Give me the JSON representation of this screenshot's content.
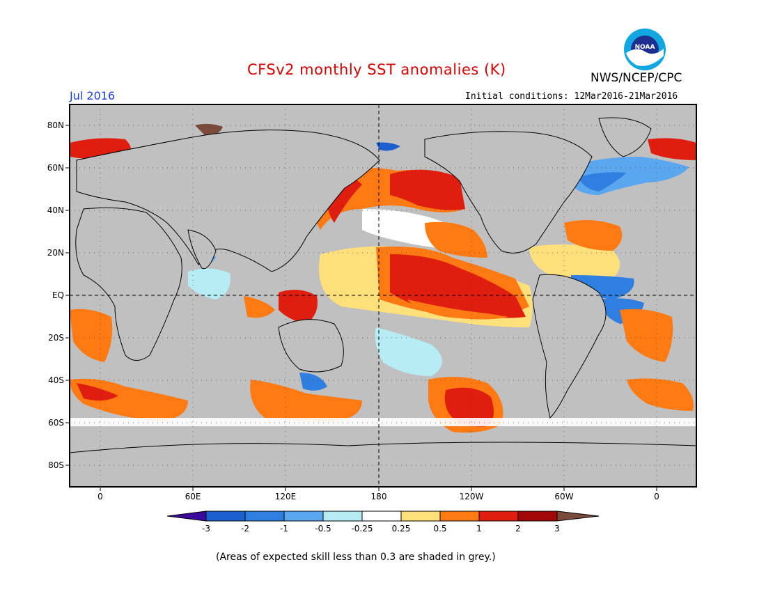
{
  "header": {
    "title": "CFSv2 monthly SST anomalies (K)",
    "month": "Jul 2016",
    "initial_conditions": "Initial conditions: 12Mar2016-21Mar2016",
    "agency": "NWS/NCEP/CPC",
    "logo_text": "NOAA"
  },
  "axes": {
    "lat_labels": [
      "80N",
      "60N",
      "40N",
      "20N",
      "EQ",
      "20S",
      "40S",
      "60S",
      "80S"
    ],
    "lon_labels": [
      "0",
      "60E",
      "120E",
      "180",
      "120W",
      "60W",
      "0"
    ]
  },
  "colorbar": {
    "labels": [
      "-3",
      "-2",
      "-1",
      "-0.5",
      "-0.25",
      "0.25",
      "0.5",
      "1",
      "2",
      "3"
    ],
    "colors": [
      "#3c0a9a",
      "#1e5fcf",
      "#2f7fe0",
      "#5aa6ef",
      "#b6ecf4",
      "#ffffff",
      "#ffe07a",
      "#ff7a12",
      "#e01e10",
      "#a30808",
      "#7a4a3a"
    ]
  },
  "colors": {
    "land": "#c0c0c0",
    "coast": "#000000",
    "skill_mask": "#c0c0c0"
  },
  "footnote": "(Areas of expected skill less than 0.3 are shaded in grey.)"
}
